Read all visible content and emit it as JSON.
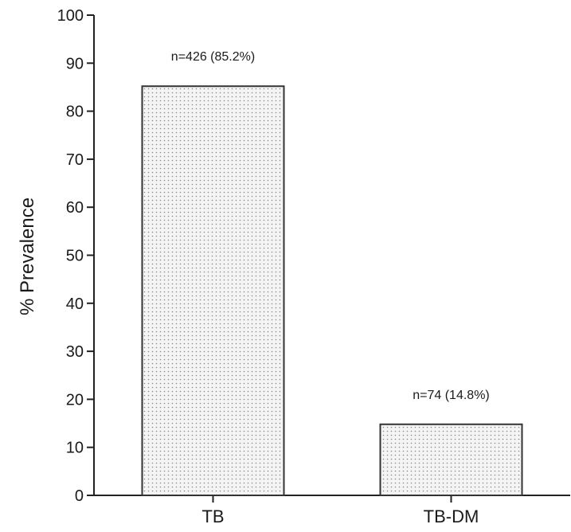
{
  "chart_data": {
    "type": "bar",
    "title": "",
    "xlabel": "",
    "ylabel": "% Prevalence",
    "categories": [
      "TB",
      "TB-DM"
    ],
    "values": [
      85.2,
      14.8
    ],
    "data_labels": [
      "n=426 (85.2%)",
      "n=74 (14.8%)"
    ],
    "ylim": [
      0,
      100
    ],
    "yticks": [
      0,
      10,
      20,
      30,
      40,
      50,
      60,
      70,
      80,
      90,
      100
    ],
    "grid": false,
    "legend": "none",
    "bar_fill": "#f2f2f2",
    "bar_pattern": "dotted",
    "bar_stroke": "#333333"
  }
}
